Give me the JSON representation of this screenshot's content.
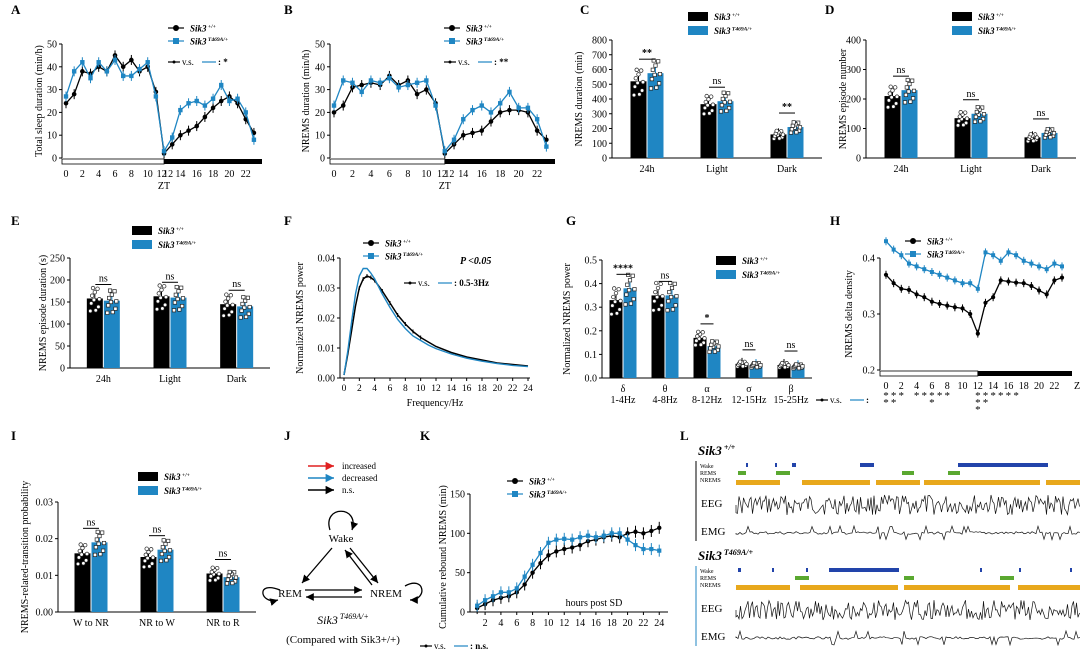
{
  "colors": {
    "wt": "#000000",
    "mut": "#1f86c3",
    "increased": "#e02020",
    "decreased": "#1f86c3",
    "ns": "#000000",
    "wake": "#2244aa",
    "rems": "#5aa830",
    "nrems": "#e8a81c"
  },
  "legend": {
    "wt": "Sik3 +/+",
    "mut": "Sik3 T469A/+"
  },
  "panel_labels": [
    "A",
    "B",
    "C",
    "D",
    "E",
    "F",
    "G",
    "H",
    "I",
    "J",
    "K",
    "L"
  ],
  "chart_data": [
    {
      "panel": "A",
      "type": "line",
      "ylabel": "Total sleep duration (min/h)",
      "xlabel": "ZT",
      "ylim": [
        0,
        50
      ],
      "yticks": [
        0,
        10,
        20,
        30,
        40,
        50
      ],
      "xticks": [
        "0",
        "2",
        "4",
        "6",
        "8",
        "10",
        "12",
        "12",
        "14",
        "16",
        "18",
        "20",
        "22"
      ],
      "annotation": "v.s.  : *",
      "series": [
        {
          "name": "Sik3 +/+",
          "x": [
            0,
            1,
            2,
            3,
            4,
            5,
            6,
            7,
            8,
            9,
            10,
            11,
            12,
            13,
            14,
            15,
            16,
            17,
            18,
            19,
            20,
            21,
            22,
            23
          ],
          "values": [
            24,
            28,
            38,
            37,
            40,
            38,
            45,
            40,
            43,
            38,
            40,
            29,
            2,
            6,
            10,
            12,
            14,
            18,
            22,
            25,
            27,
            24,
            17,
            11
          ]
        },
        {
          "name": "Sik3 T469A/+",
          "x": [
            0,
            1,
            2,
            3,
            4,
            5,
            6,
            7,
            8,
            9,
            10,
            11,
            12,
            13,
            14,
            15,
            16,
            17,
            18,
            19,
            20,
            21,
            22,
            23
          ],
          "values": [
            27,
            38,
            42,
            35,
            42,
            38,
            43,
            36,
            36,
            39,
            42,
            27,
            3,
            9,
            21,
            24,
            25,
            23,
            26,
            32,
            25,
            26,
            20,
            8
          ]
        }
      ]
    },
    {
      "panel": "B",
      "type": "line",
      "ylabel": "NREMS duration (min/h)",
      "xlabel": "ZT",
      "ylim": [
        0,
        50
      ],
      "yticks": [
        0,
        10,
        20,
        30,
        40,
        50
      ],
      "xticks": [
        "0",
        "2",
        "4",
        "6",
        "8",
        "10",
        "12",
        "12",
        "14",
        "16",
        "18",
        "20",
        "22"
      ],
      "annotation": "v.s.  : **",
      "series": [
        {
          "name": "Sik3 +/+",
          "x": [
            0,
            1,
            2,
            3,
            4,
            5,
            6,
            7,
            8,
            9,
            10,
            11,
            12,
            13,
            14,
            15,
            16,
            17,
            18,
            19,
            20,
            21,
            22,
            23
          ],
          "values": [
            20,
            23,
            31,
            32,
            33,
            32,
            36,
            32,
            34,
            28,
            30,
            24,
            2,
            6,
            10,
            11,
            12,
            16,
            20,
            21,
            21,
            20,
            12,
            8
          ]
        },
        {
          "name": "Sik3 T469A/+",
          "x": [
            0,
            1,
            2,
            3,
            4,
            5,
            6,
            7,
            8,
            9,
            10,
            11,
            12,
            13,
            14,
            15,
            16,
            17,
            18,
            19,
            20,
            21,
            22,
            23
          ],
          "values": [
            23,
            34,
            33,
            29,
            34,
            33,
            35,
            31,
            32,
            33,
            34,
            23,
            3,
            8,
            17,
            21,
            23,
            20,
            24,
            29,
            22,
            22,
            17,
            5
          ]
        }
      ]
    },
    {
      "panel": "C",
      "type": "bar",
      "ylabel": "NREMS duration (min)",
      "ylim": [
        0,
        800
      ],
      "yticks": [
        0,
        100,
        200,
        300,
        400,
        500,
        600,
        700,
        800
      ],
      "categories": [
        "24h",
        "Light",
        "Dark"
      ],
      "significance": [
        "**",
        "ns",
        "**"
      ],
      "series": [
        {
          "name": "Sik3 +/+",
          "values": [
            520,
            365,
            160
          ]
        },
        {
          "name": "Sik3 T469A/+",
          "values": [
            575,
            385,
            210
          ]
        }
      ]
    },
    {
      "panel": "D",
      "type": "bar",
      "ylabel": "NREMS episode number",
      "ylim": [
        0,
        400
      ],
      "yticks": [
        0,
        100,
        200,
        300,
        400
      ],
      "categories": [
        "24h",
        "Light",
        "Dark"
      ],
      "significance": [
        "ns",
        "ns",
        "ns"
      ],
      "series": [
        {
          "name": "Sik3 +/+",
          "values": [
            210,
            135,
            70
          ]
        },
        {
          "name": "Sik3 T469A/+",
          "values": [
            230,
            150,
            85
          ]
        }
      ]
    },
    {
      "panel": "E",
      "type": "bar",
      "ylabel": "NREMS episode duration (s)",
      "ylim": [
        0,
        250
      ],
      "yticks": [
        0,
        50,
        100,
        150,
        200,
        250
      ],
      "categories": [
        "24h",
        "Light",
        "Dark"
      ],
      "significance": [
        "ns",
        "ns",
        "ns"
      ],
      "series": [
        {
          "name": "Sik3 +/+",
          "values": [
            158,
            163,
            145
          ]
        },
        {
          "name": "Sik3 T469A/+",
          "values": [
            153,
            160,
            140
          ]
        }
      ]
    },
    {
      "panel": "F",
      "type": "line",
      "ylabel": "Normalized NREMS power",
      "xlabel": "Frequency/Hz",
      "ylim": [
        0,
        0.04
      ],
      "yticks": [
        0.0,
        0.01,
        0.02,
        0.03,
        0.04
      ],
      "xticks": [
        0,
        2,
        4,
        6,
        8,
        10,
        12,
        14,
        16,
        18,
        20,
        22,
        24
      ],
      "annotation_p": "P <0.05",
      "annotation": "v.s.  : 0.5-3Hz",
      "series": [
        {
          "name": "Sik3 +/+",
          "x": [
            0,
            0.5,
            1,
            1.5,
            2,
            2.5,
            3,
            3.5,
            4,
            5,
            6,
            7,
            8,
            9,
            10,
            11,
            12,
            14,
            16,
            18,
            20,
            22,
            24
          ],
          "values": [
            0.001,
            0.008,
            0.016,
            0.024,
            0.03,
            0.033,
            0.034,
            0.0335,
            0.0325,
            0.029,
            0.025,
            0.021,
            0.018,
            0.0155,
            0.0135,
            0.012,
            0.0105,
            0.0085,
            0.007,
            0.006,
            0.005,
            0.0045,
            0.004
          ]
        },
        {
          "name": "Sik3 T469A/+",
          "x": [
            0,
            0.5,
            1,
            1.5,
            2,
            2.5,
            3,
            3.5,
            4,
            5,
            6,
            7,
            8,
            9,
            10,
            11,
            12,
            14,
            16,
            18,
            20,
            22,
            24
          ],
          "values": [
            0.001,
            0.009,
            0.019,
            0.028,
            0.034,
            0.0365,
            0.0365,
            0.035,
            0.033,
            0.028,
            0.0235,
            0.0195,
            0.0165,
            0.014,
            0.0125,
            0.011,
            0.0098,
            0.008,
            0.0066,
            0.0056,
            0.0048,
            0.0042,
            0.0038
          ]
        }
      ]
    },
    {
      "panel": "G",
      "type": "bar",
      "ylabel": "Normalized NREMS power",
      "ylim": [
        0,
        0.5
      ],
      "yticks": [
        0.0,
        0.1,
        0.2,
        0.3,
        0.4,
        0.5
      ],
      "categories": [
        "δ\n1-4Hz",
        "θ\n4-8Hz",
        "α\n8-12Hz",
        "σ\n12-15Hz",
        "β\n15-25Hz"
      ],
      "significance": [
        "****",
        "ns",
        "*",
        "ns",
        "ns"
      ],
      "series": [
        {
          "name": "Sik3 +/+",
          "values": [
            0.33,
            0.35,
            0.17,
            0.06,
            0.055
          ]
        },
        {
          "name": "Sik3 T469A/+",
          "values": [
            0.38,
            0.35,
            0.135,
            0.055,
            0.05
          ]
        }
      ]
    },
    {
      "panel": "H",
      "type": "line",
      "ylabel": "NREMS delta density",
      "xlabel": "ZT",
      "ylim": [
        0.2,
        0.4
      ],
      "yticks": [
        0.2,
        0.3,
        0.4
      ],
      "xticks": [
        "0",
        "2",
        "4",
        "6",
        "8",
        "10",
        "12",
        "14",
        "16",
        "18",
        "20",
        "22"
      ],
      "annotation": "v.s.  :",
      "stars_row1": [
        "***",
        "***",
        "* **",
        "* **",
        "",
        "***",
        "****"
      ],
      "series": [
        {
          "name": "Sik3 +/+",
          "x": [
            0,
            1,
            2,
            3,
            4,
            5,
            6,
            7,
            8,
            9,
            10,
            11,
            12,
            13,
            14,
            15,
            16,
            17,
            18,
            19,
            20,
            21,
            22,
            23
          ],
          "values": [
            0.37,
            0.355,
            0.345,
            0.343,
            0.335,
            0.33,
            0.322,
            0.318,
            0.315,
            0.312,
            0.31,
            0.3,
            0.265,
            0.32,
            0.33,
            0.36,
            0.358,
            0.356,
            0.355,
            0.35,
            0.342,
            0.335,
            0.36,
            0.365
          ]
        },
        {
          "name": "Sik3 T469A/+",
          "x": [
            0,
            1,
            2,
            3,
            4,
            5,
            6,
            7,
            8,
            9,
            10,
            11,
            12,
            13,
            14,
            15,
            16,
            17,
            18,
            19,
            20,
            21,
            22,
            23
          ],
          "values": [
            0.43,
            0.415,
            0.405,
            0.39,
            0.385,
            0.38,
            0.375,
            0.37,
            0.365,
            0.36,
            0.355,
            0.355,
            0.345,
            0.41,
            0.405,
            0.395,
            0.41,
            0.405,
            0.395,
            0.39,
            0.385,
            0.38,
            0.39,
            0.385
          ]
        }
      ]
    },
    {
      "panel": "I",
      "type": "bar",
      "ylabel": "NREMS-related-transition probability",
      "ylim": [
        0,
        0.03
      ],
      "yticks": [
        0.0,
        0.01,
        0.02,
        0.03
      ],
      "categories": [
        "W to NR",
        "NR to W",
        "NR to R"
      ],
      "significance": [
        "ns",
        "ns",
        "ns"
      ],
      "series": [
        {
          "name": "Sik3 +/+",
          "values": [
            0.016,
            0.015,
            0.0105
          ]
        },
        {
          "name": "Sik3 T469A/+",
          "values": [
            0.019,
            0.017,
            0.0095
          ]
        }
      ]
    },
    {
      "panel": "K",
      "type": "line",
      "ylabel": "Cumulative rebound NREMS (min)",
      "xlabel": "hours post SD",
      "ylim": [
        0,
        150
      ],
      "yticks": [
        0,
        50,
        100,
        150
      ],
      "xticks": [
        2,
        4,
        6,
        8,
        10,
        12,
        14,
        16,
        18,
        20,
        22,
        24
      ],
      "annotation": "v.s.  :  n.s.",
      "series": [
        {
          "name": "Sik3 +/+",
          "x": [
            1,
            2,
            3,
            4,
            5,
            6,
            7,
            8,
            9,
            10,
            11,
            12,
            13,
            14,
            15,
            16,
            17,
            18,
            19,
            20,
            21,
            22,
            23,
            24
          ],
          "values": [
            5,
            10,
            15,
            18,
            20,
            25,
            35,
            50,
            62,
            72,
            77,
            80,
            82,
            85,
            90,
            92,
            95,
            97,
            95,
            100,
            102,
            100,
            103,
            107
          ]
        },
        {
          "name": "Sik3 T469A/+",
          "x": [
            1,
            2,
            3,
            4,
            5,
            6,
            7,
            8,
            9,
            10,
            11,
            12,
            13,
            14,
            15,
            16,
            17,
            18,
            19,
            20,
            21,
            22,
            23,
            24
          ],
          "values": [
            8,
            15,
            20,
            25,
            25,
            30,
            45,
            60,
            75,
            88,
            92,
            93,
            92,
            95,
            97,
            95,
            97,
            100,
            100,
            92,
            85,
            80,
            80,
            78
          ]
        }
      ]
    }
  ],
  "diagram_J": {
    "legend": [
      "increased",
      "decreased",
      "n.s."
    ],
    "nodes": {
      "wake": "Wake",
      "rem": "REM",
      "nrem": "NREM"
    },
    "caption_genotype": "Sik3 T469A/+",
    "caption_compare": "(Compared with Sik3+/+)"
  },
  "panel_L": {
    "title_wt": "Sik3 +/+",
    "title_mut": "Sik3 T469A/+",
    "stage_labels": [
      "Wake",
      "REMS",
      "NREMS"
    ],
    "channels": [
      "EEG",
      "EMG"
    ]
  }
}
